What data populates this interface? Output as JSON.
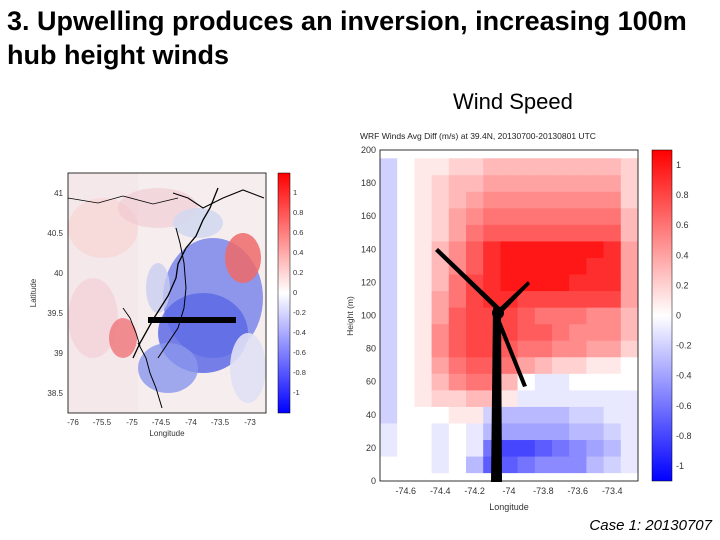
{
  "slide": {
    "title": "3. Upwelling produces an inversion, increasing 100m hub height winds",
    "panel_heading": "Wind Speed",
    "caption": "Case 1: 20130707"
  },
  "colors": {
    "positive": "#ff0000",
    "negative": "#0000ff",
    "neutral": "#ffffff",
    "turbine": "#000000"
  },
  "map": {
    "xlabel": "Longitude",
    "ylabel": "Latitude",
    "x_ticks": [
      "-76",
      "-75.5",
      "-75",
      "-74.5",
      "-74",
      "-73.5",
      "-73"
    ],
    "y_ticks": [
      "41",
      "40.5",
      "40",
      "39.5",
      "39",
      "38.5"
    ],
    "colorbar_ticks": [
      "1",
      "0.8",
      "0.6",
      "0.4",
      "0.2",
      "0",
      "-0.2",
      "-0.4",
      "-0.6",
      "-0.8",
      "-1"
    ]
  },
  "chart_data": {
    "type": "heatmap",
    "title": "WRF Winds Avg Diff (m/s) at 39.4N, 20130700-20130801 UTC",
    "xlabel": "Longitude",
    "ylabel": "Height (m)",
    "xlim": [
      -74.75,
      -73.25
    ],
    "ylim": [
      0,
      200
    ],
    "x_ticks": [
      "-74.6",
      "-74.4",
      "-74.2",
      "-74",
      "-73.8",
      "-73.6",
      "-73.4"
    ],
    "y_ticks": [
      "0",
      "20",
      "40",
      "60",
      "80",
      "100",
      "120",
      "140",
      "160",
      "180",
      "200"
    ],
    "colorbar_range": [
      -1.1,
      1.1
    ],
    "colorbar_ticks": [
      "1",
      "0.8",
      "0.6",
      "0.4",
      "0.2",
      "0",
      "-0.2",
      "-0.4",
      "-0.6",
      "-0.8",
      "-1"
    ],
    "x": [
      -74.7,
      -74.6,
      -74.5,
      -74.4,
      -74.3,
      -74.2,
      -74.1,
      -74.0,
      -73.9,
      -73.8,
      -73.7,
      -73.6,
      -73.5,
      -73.4,
      -73.3
    ],
    "heights": [
      10,
      20,
      30,
      40,
      50,
      60,
      70,
      80,
      90,
      100,
      110,
      120,
      130,
      140,
      150,
      160,
      170,
      180,
      190
    ],
    "values": [
      [
        0.0,
        0.0,
        0.0,
        -0.1,
        0.0,
        -0.3,
        -0.7,
        -0.7,
        -0.6,
        -0.5,
        -0.5,
        -0.5,
        -0.3,
        -0.2,
        -0.1
      ],
      [
        -0.1,
        0.0,
        0.0,
        -0.1,
        0.0,
        -0.1,
        -0.6,
        -0.8,
        -0.8,
        -0.7,
        -0.6,
        -0.5,
        -0.4,
        -0.3,
        -0.1
      ],
      [
        -0.1,
        0.0,
        0.0,
        -0.1,
        0.0,
        -0.1,
        -0.3,
        -0.4,
        -0.4,
        -0.4,
        -0.4,
        -0.3,
        -0.3,
        -0.2,
        -0.1
      ],
      [
        -0.2,
        0.0,
        0.0,
        0.0,
        0.1,
        0.1,
        -0.2,
        -0.3,
        -0.3,
        -0.3,
        -0.3,
        -0.2,
        -0.2,
        -0.1,
        -0.1
      ],
      [
        -0.2,
        0.0,
        0.1,
        0.2,
        0.2,
        0.3,
        0.3,
        0.1,
        -0.1,
        -0.1,
        -0.1,
        -0.1,
        -0.1,
        -0.1,
        -0.1
      ],
      [
        -0.2,
        0.0,
        0.1,
        0.3,
        0.5,
        0.6,
        0.6,
        0.3,
        0.0,
        -0.1,
        -0.1,
        0.0,
        0.0,
        0.0,
        0.0
      ],
      [
        -0.2,
        0.0,
        0.1,
        0.4,
        0.6,
        0.7,
        0.7,
        0.6,
        0.4,
        0.3,
        0.2,
        0.2,
        0.1,
        0.1,
        0.0
      ],
      [
        -0.2,
        0.0,
        0.1,
        0.5,
        0.7,
        0.8,
        0.8,
        0.7,
        0.6,
        0.6,
        0.5,
        0.5,
        0.4,
        0.4,
        0.2
      ],
      [
        -0.2,
        0.0,
        0.1,
        0.5,
        0.7,
        0.8,
        0.8,
        0.8,
        0.7,
        0.7,
        0.6,
        0.5,
        0.5,
        0.5,
        0.3
      ],
      [
        -0.2,
        0.0,
        0.1,
        0.4,
        0.7,
        0.8,
        0.8,
        0.8,
        0.7,
        0.6,
        0.6,
        0.6,
        0.5,
        0.5,
        0.3
      ],
      [
        -0.2,
        0.0,
        0.1,
        0.4,
        0.6,
        0.8,
        0.9,
        0.9,
        0.8,
        0.8,
        0.8,
        0.8,
        0.8,
        0.8,
        0.4
      ],
      [
        -0.2,
        0.0,
        0.1,
        0.3,
        0.6,
        0.8,
        0.9,
        1.0,
        1.0,
        1.0,
        1.0,
        0.9,
        0.9,
        0.9,
        0.4
      ],
      [
        -0.2,
        0.0,
        0.1,
        0.3,
        0.5,
        0.7,
        0.9,
        1.0,
        1.0,
        1.0,
        1.0,
        1.0,
        0.9,
        0.9,
        0.4
      ],
      [
        -0.2,
        0.0,
        0.1,
        0.3,
        0.5,
        0.7,
        0.9,
        1.0,
        1.0,
        1.0,
        1.0,
        1.0,
        1.0,
        0.9,
        0.4
      ],
      [
        -0.2,
        0.0,
        0.1,
        0.2,
        0.4,
        0.6,
        0.7,
        0.7,
        0.7,
        0.7,
        0.7,
        0.7,
        0.7,
        0.7,
        0.3
      ],
      [
        -0.2,
        0.0,
        0.1,
        0.2,
        0.4,
        0.5,
        0.6,
        0.6,
        0.6,
        0.6,
        0.6,
        0.6,
        0.6,
        0.6,
        0.3
      ],
      [
        -0.2,
        0.0,
        0.1,
        0.2,
        0.3,
        0.4,
        0.5,
        0.5,
        0.5,
        0.5,
        0.5,
        0.5,
        0.5,
        0.5,
        0.2
      ],
      [
        -0.2,
        0.0,
        0.1,
        0.2,
        0.3,
        0.3,
        0.4,
        0.4,
        0.4,
        0.4,
        0.4,
        0.4,
        0.4,
        0.4,
        0.2
      ],
      [
        -0.2,
        0.0,
        0.1,
        0.1,
        0.2,
        0.2,
        0.3,
        0.3,
        0.3,
        0.3,
        0.3,
        0.3,
        0.3,
        0.3,
        0.2
      ]
    ]
  }
}
